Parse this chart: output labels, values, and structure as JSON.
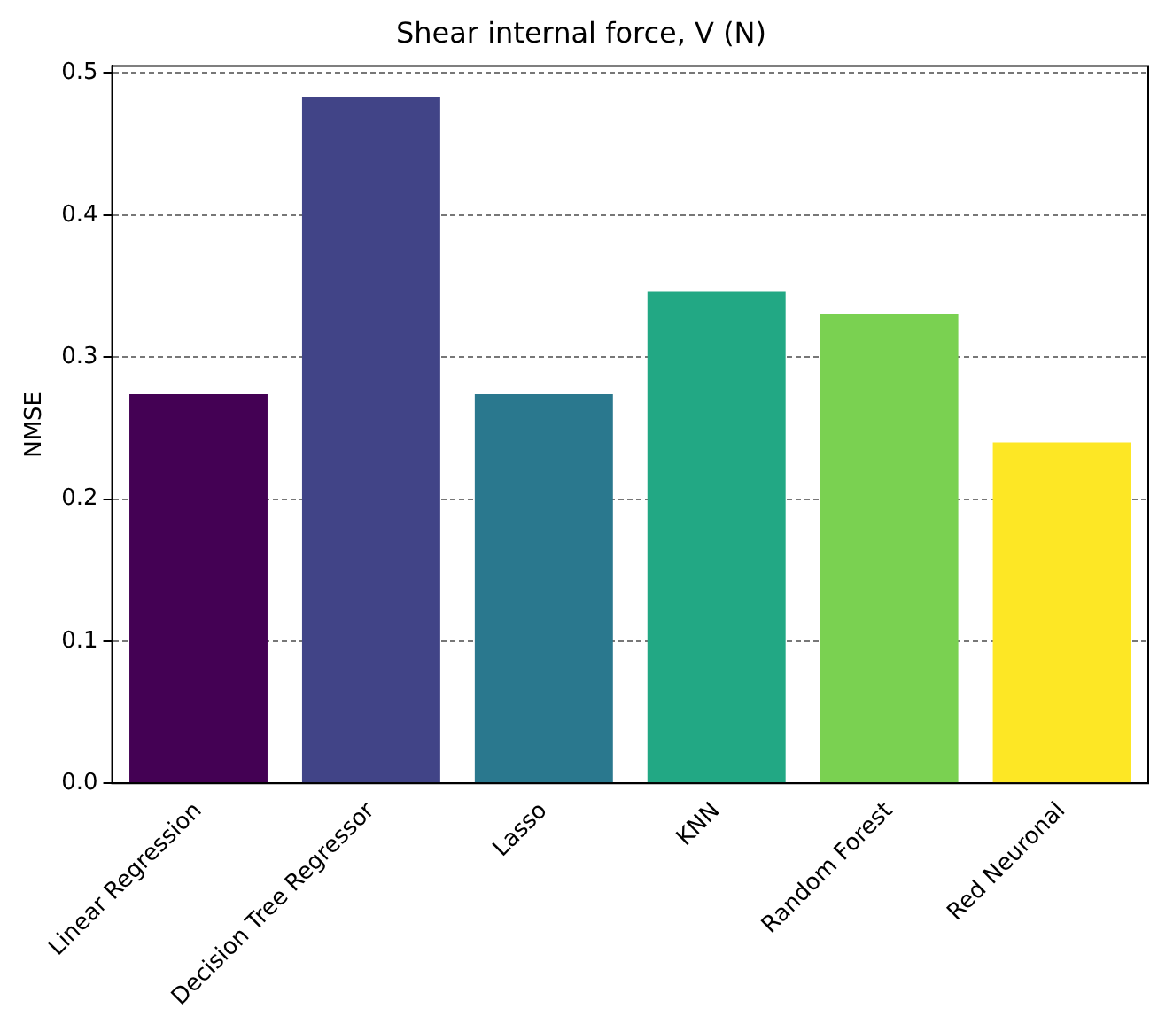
{
  "chart_data": {
    "type": "bar",
    "title": "Shear internal force, V (N)",
    "ylabel": "NMSE",
    "categories": [
      "Linear Regression",
      "Decision Tree Regressor",
      "Lasso",
      "KNN",
      "Random Forest",
      "Red Neuronal"
    ],
    "values": [
      0.274,
      0.483,
      0.274,
      0.346,
      0.33,
      0.24
    ],
    "colors": [
      "#440154",
      "#414487",
      "#2a788e",
      "#22a884",
      "#7ad151",
      "#fde725"
    ],
    "ylim": [
      0,
      0.505
    ],
    "yticks": [
      {
        "value": 0,
        "label": "0.0"
      },
      0.1,
      0.2,
      0.3,
      0.4,
      0.5
    ],
    "grid": "y"
  }
}
